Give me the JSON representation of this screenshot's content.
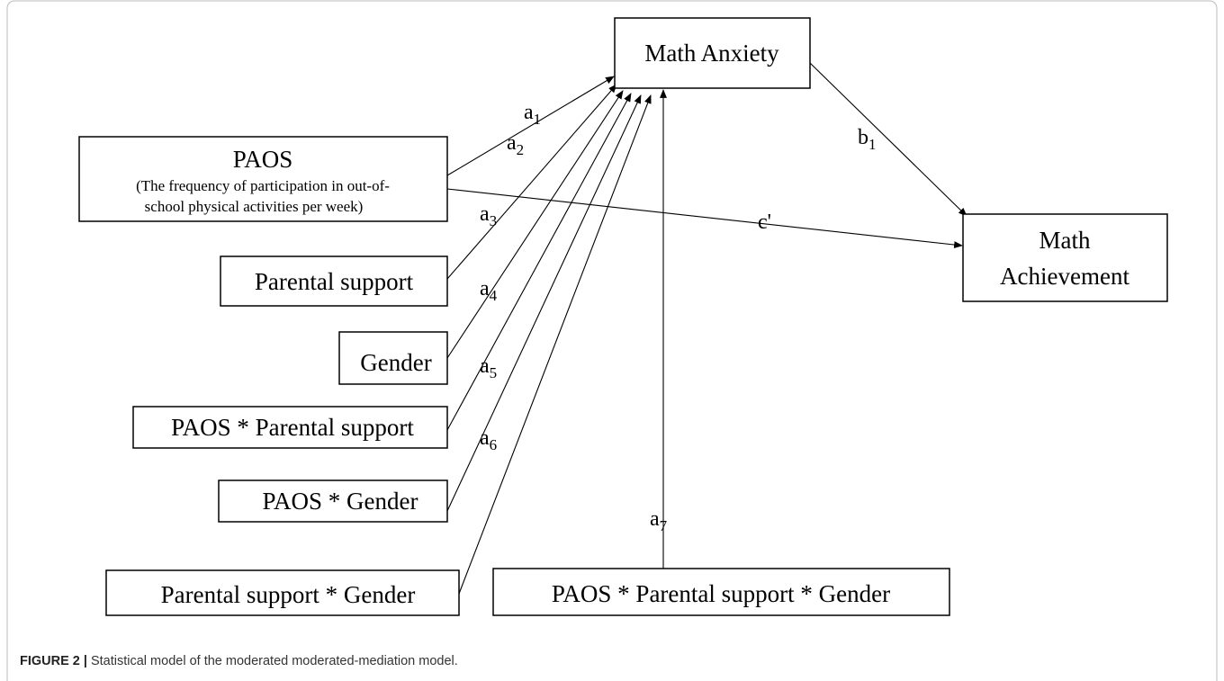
{
  "nodes": [
    {
      "label": "Math Anxiety"
    },
    {
      "label": "PAOS",
      "sublines": [
        "(The frequency of participation in out-of-",
        "school physical activities per week)"
      ]
    },
    {
      "label": "Parental support"
    },
    {
      "label": "Gender"
    },
    {
      "label": "PAOS * Parental support"
    },
    {
      "label": "PAOS * Gender"
    },
    {
      "label": "Parental support * Gender"
    },
    {
      "label": "PAOS * Parental support * Gender"
    },
    {
      "label": "Math",
      "label2": "Achievement"
    }
  ],
  "edges": [
    {
      "letter": "a",
      "sub": "1"
    },
    {
      "letter": "a",
      "sub": "2"
    },
    {
      "letter": "a",
      "sub": "3"
    },
    {
      "letter": "a",
      "sub": "4"
    },
    {
      "letter": "a",
      "sub": "5"
    },
    {
      "letter": "a",
      "sub": "6"
    },
    {
      "letter": "a",
      "sub": "7"
    },
    {
      "letter": "b",
      "sub": "1"
    },
    {
      "letter": "c'"
    }
  ],
  "caption": {
    "label": "FIGURE 2 |",
    "text": "Statistical model of the moderated moderated-mediation model."
  }
}
